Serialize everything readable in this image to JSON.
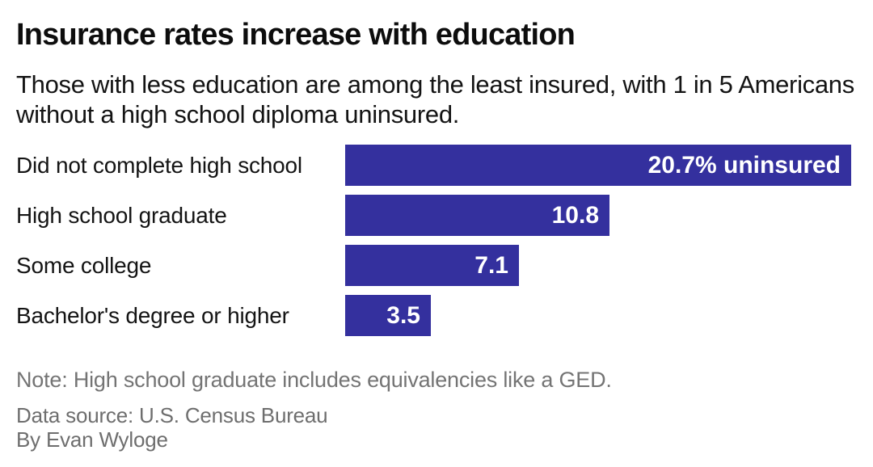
{
  "header": {
    "title": "Insurance rates increase with education",
    "subtitle": "Those with less education are among the least insured, with 1 in 5 Americans without a high school diploma uninsured."
  },
  "chart_data": {
    "type": "bar",
    "orientation": "horizontal",
    "categories": [
      "Did not complete high school",
      "High school graduate",
      "Some college",
      "Bachelor's degree or higher"
    ],
    "values": [
      20.7,
      10.8,
      7.1,
      3.5
    ],
    "value_labels": [
      "20.7% uninsured",
      "10.8",
      "7.1",
      "3.5"
    ],
    "unit": "% uninsured",
    "xlim": [
      0,
      20.7
    ],
    "grid": false,
    "legend": false,
    "bar_color": "#34309E",
    "value_label_color": "#FFFFFF"
  },
  "footer": {
    "note": "Note: High school graduate includes equivalencies like a GED.",
    "source": "Data source: U.S. Census Bureau",
    "byline": "By Evan Wyloge"
  }
}
